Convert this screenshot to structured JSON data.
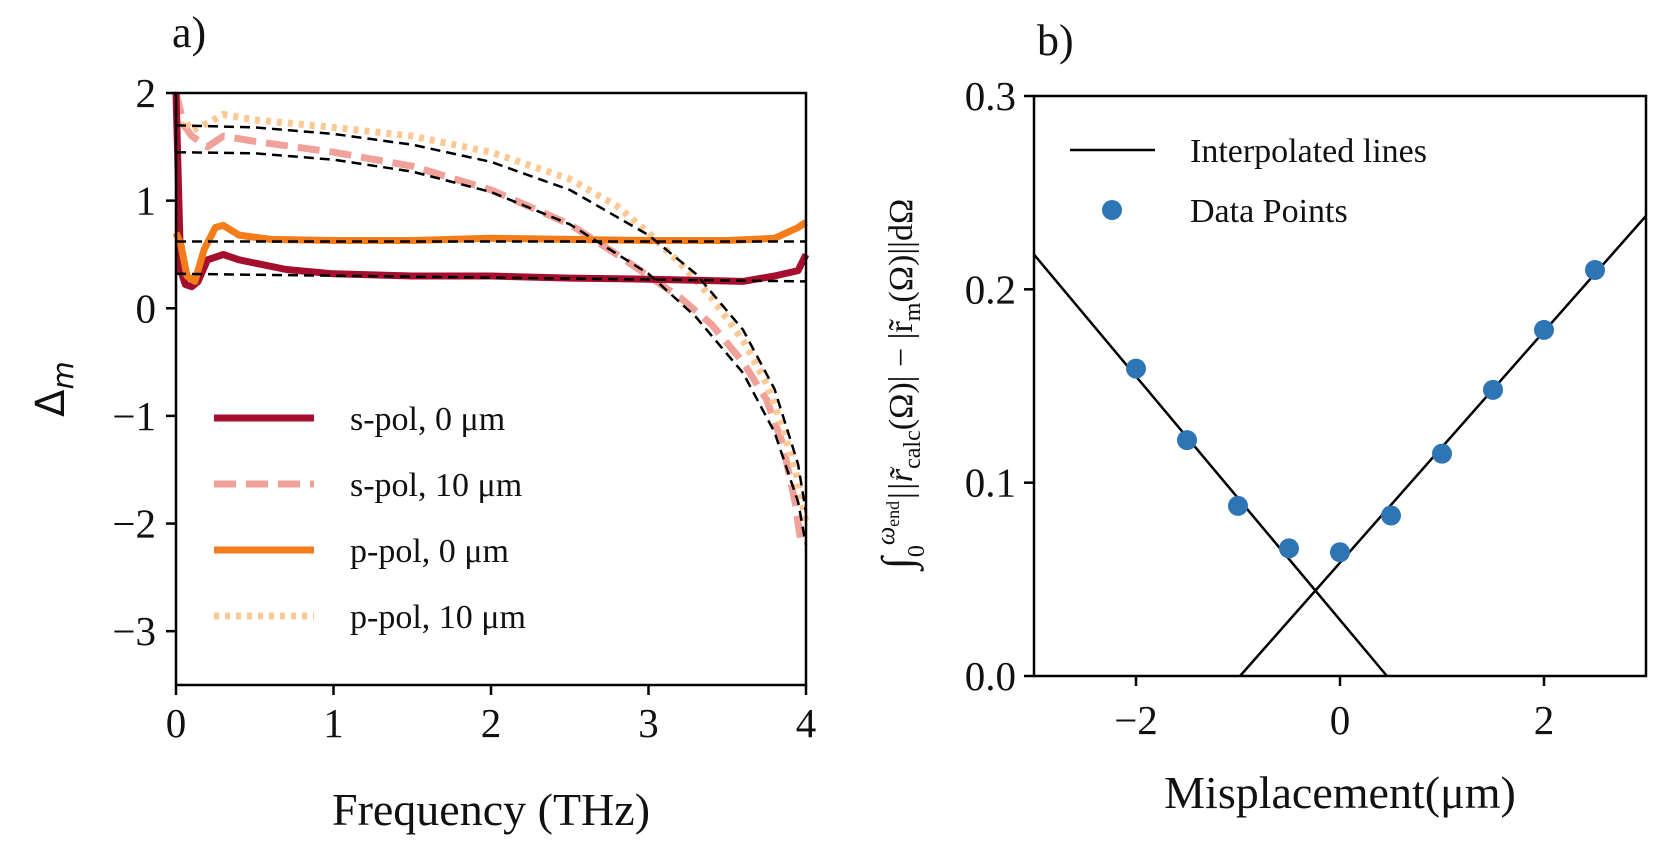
{
  "chart_data": [
    {
      "type": "line",
      "panel_label": "a)",
      "title": "",
      "xlabel": "Frequency (THz)",
      "ylabel": "Δm",
      "xlim": [
        0,
        4
      ],
      "ylim": [
        -3.5,
        2
      ],
      "xticks": [
        0,
        1,
        2,
        3,
        4
      ],
      "xtick_labels": [
        "0",
        "1",
        "2",
        "3",
        "4"
      ],
      "yticks": [
        2,
        1,
        0,
        -1,
        -2,
        -3
      ],
      "ytick_labels": [
        "2",
        "1",
        "0",
        "−1",
        "−2",
        "−3"
      ],
      "grid": false,
      "legend_position": "lower-center",
      "series": [
        {
          "name": "s-pol, 0 μm",
          "color": "#a50f2d",
          "style": "solid",
          "x": [
            0.0,
            0.03,
            0.06,
            0.1,
            0.14,
            0.2,
            0.3,
            0.4,
            0.5,
            0.7,
            1.0,
            1.5,
            2.0,
            2.5,
            3.0,
            3.3,
            3.6,
            3.8,
            3.95,
            4.0
          ],
          "y": [
            2.0,
            0.35,
            0.22,
            0.2,
            0.25,
            0.45,
            0.5,
            0.45,
            0.42,
            0.36,
            0.32,
            0.3,
            0.3,
            0.28,
            0.27,
            0.26,
            0.25,
            0.3,
            0.35,
            0.5
          ]
        },
        {
          "name": "s-pol, 10 μm",
          "color": "#f0a19a",
          "style": "dashed",
          "x": [
            0.0,
            0.05,
            0.1,
            0.2,
            0.3,
            0.5,
            1.0,
            1.5,
            2.0,
            2.5,
            2.8,
            3.0,
            3.2,
            3.4,
            3.6,
            3.75,
            3.85,
            3.93,
            3.97
          ],
          "y": [
            2.0,
            1.7,
            1.6,
            1.5,
            1.6,
            1.55,
            1.45,
            1.32,
            1.1,
            0.78,
            0.5,
            0.3,
            0.1,
            -0.15,
            -0.5,
            -0.85,
            -1.25,
            -1.8,
            -2.2
          ]
        },
        {
          "name": "p-pol, 0 μm",
          "color": "#f37d1a",
          "style": "solid",
          "x": [
            0.0,
            0.03,
            0.07,
            0.12,
            0.18,
            0.25,
            0.3,
            0.4,
            0.6,
            1.0,
            1.5,
            2.0,
            2.5,
            3.0,
            3.5,
            3.8,
            3.95,
            4.0
          ],
          "y": [
            0.7,
            0.6,
            0.3,
            0.25,
            0.55,
            0.75,
            0.77,
            0.68,
            0.64,
            0.63,
            0.63,
            0.65,
            0.64,
            0.63,
            0.63,
            0.65,
            0.75,
            0.8
          ]
        },
        {
          "name": "p-pol, 10 μm",
          "color": "#fcc994",
          "style": "dotted",
          "x": [
            0.0,
            0.05,
            0.1,
            0.2,
            0.3,
            0.5,
            1.0,
            1.5,
            2.0,
            2.5,
            2.8,
            3.0,
            3.2,
            3.4,
            3.6,
            3.75,
            3.85,
            3.95,
            4.0
          ],
          "y": [
            1.6,
            1.75,
            1.65,
            1.72,
            1.8,
            1.75,
            1.68,
            1.6,
            1.45,
            1.2,
            0.95,
            0.7,
            0.42,
            0.1,
            -0.3,
            -0.7,
            -1.1,
            -1.6,
            -2.0
          ]
        }
      ],
      "fits": [
        {
          "name": "fit-s-pol-10",
          "x": [
            0.0,
            0.5,
            1.0,
            1.5,
            2.0,
            2.5,
            3.0,
            3.3,
            3.6,
            3.8,
            3.95,
            4.0
          ],
          "y": [
            1.45,
            1.44,
            1.38,
            1.27,
            1.08,
            0.78,
            0.32,
            -0.08,
            -0.6,
            -1.15,
            -1.8,
            -2.2
          ]
        },
        {
          "name": "fit-p-pol-10",
          "x": [
            0.0,
            0.5,
            1.0,
            1.5,
            2.0,
            2.5,
            3.0,
            3.3,
            3.6,
            3.8,
            3.95,
            4.0
          ],
          "y": [
            1.7,
            1.68,
            1.62,
            1.52,
            1.36,
            1.1,
            0.68,
            0.32,
            -0.2,
            -0.75,
            -1.45,
            -1.9
          ]
        },
        {
          "name": "fit-p-pol-0",
          "x": [
            0.0,
            4.0
          ],
          "y": [
            0.62,
            0.62
          ]
        },
        {
          "name": "fit-s-pol-0",
          "x": [
            0.0,
            4.0
          ],
          "y": [
            0.32,
            0.25
          ]
        }
      ]
    },
    {
      "type": "scatter",
      "panel_label": "b)",
      "title": "",
      "xlabel": "Misplacement(μm)",
      "ylabel": "∫0^ωend ||r̃calc(Ω)| − |r̃m(Ω)|| dΩ",
      "xlim": [
        -3,
        3
      ],
      "ylim": [
        0,
        0.3
      ],
      "xticks": [
        -2,
        0,
        2
      ],
      "xtick_labels": [
        "−2",
        "0",
        "2"
      ],
      "yticks": [
        0.0,
        0.1,
        0.2,
        0.3
      ],
      "ytick_labels": [
        "0.0",
        "0.1",
        "0.2",
        "0.3"
      ],
      "grid": false,
      "legend_position": "top-left",
      "series": [
        {
          "name": "Data Points",
          "color": "#2e75b6",
          "style": "marker",
          "x": [
            -2.0,
            -1.5,
            -1.0,
            -0.5,
            0.0,
            0.5,
            1.0,
            1.5,
            2.0,
            2.5
          ],
          "y": [
            0.159,
            0.122,
            0.088,
            0.066,
            0.064,
            0.083,
            0.115,
            0.148,
            0.179,
            0.21
          ]
        },
        {
          "name": "Interpolated lines",
          "color": "#000000",
          "style": "solid",
          "lines": [
            {
              "x": [
                -3.0,
                0.46
              ],
              "y": [
                0.218,
                0.0
              ]
            },
            {
              "x": [
                -0.98,
                3.0
              ],
              "y": [
                0.0,
                0.238
              ]
            }
          ]
        }
      ]
    }
  ],
  "ylabel_b_parts": {
    "integral": "∫",
    "lower": "0",
    "upper": "ω",
    "upper_sub": "end",
    "body1": "||r̃",
    "sub1": "calc",
    "body2": "(Ω)| − |r̃",
    "sub2": "m",
    "body3": "(Ω)||dΩ"
  },
  "ylabel_a_parts": {
    "main": "Δ",
    "sub": "m"
  }
}
